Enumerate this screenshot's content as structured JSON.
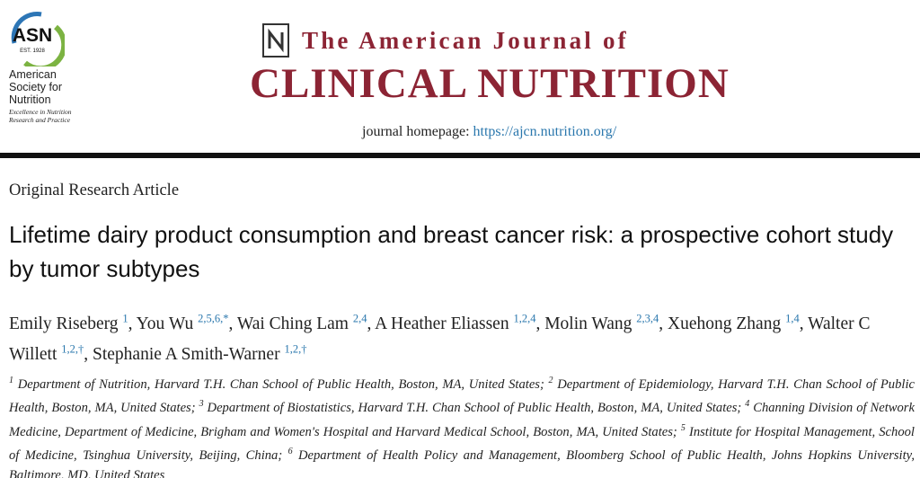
{
  "header": {
    "logo": {
      "mark": "ASN",
      "established": "EST. 1928",
      "society": "American Society for Nutrition",
      "motto": "Excellence in Nutrition Research and Practice"
    },
    "journal": {
      "line1": "The American Journal of",
      "line2": "CLINICAL NUTRITION",
      "homepage_label": "journal homepage:",
      "homepage_url": "https://ajcn.nutrition.org/"
    }
  },
  "article": {
    "type": "Original Research Article",
    "title": "Lifetime dairy product consumption and breast cancer risk: a prospective cohort study by tumor subtypes",
    "authors": {
      "delimiter": ",",
      "list": [
        {
          "name": "Emily Riseberg",
          "marks": "1"
        },
        {
          "name": "You Wu",
          "marks": "2,5,6,*"
        },
        {
          "name": "Wai Ching Lam",
          "marks": "2,4"
        },
        {
          "name": "A Heather Eliassen",
          "marks": "1,2,4"
        },
        {
          "name": "Molin Wang",
          "marks": "2,3,4"
        },
        {
          "name": "Xuehong Zhang",
          "marks": "1,4"
        },
        {
          "name": "Walter C Willett",
          "marks": "1,2,†"
        },
        {
          "name": "Stephanie A Smith-Warner",
          "marks": "1,2,†"
        }
      ]
    },
    "affiliations": [
      {
        "number": "1",
        "text": "Department of Nutrition, Harvard T.H. Chan School of Public Health, Boston, MA, United States;"
      },
      {
        "number": "2",
        "text": "Department of Epidemiology, Harvard T.H. Chan School of Public Health, Boston, MA, United States;"
      },
      {
        "number": "3",
        "text": "Department of Biostatistics, Harvard T.H. Chan School of Public Health, Boston, MA, United States;"
      },
      {
        "number": "4",
        "text": "Channing Division of Network Medicine, Department of Medicine, Brigham and Women's Hospital and Harvard Medical School, Boston, MA, United States;"
      },
      {
        "number": "5",
        "text": "Institute for Hospital Management, School of Medicine, Tsinghua University, Beijing, China;"
      },
      {
        "number": "6",
        "text": "Department of Health Policy and Management, Bloomberg School of Public Health, Johns Hopkins University, Baltimore, MD, United States"
      }
    ]
  }
}
